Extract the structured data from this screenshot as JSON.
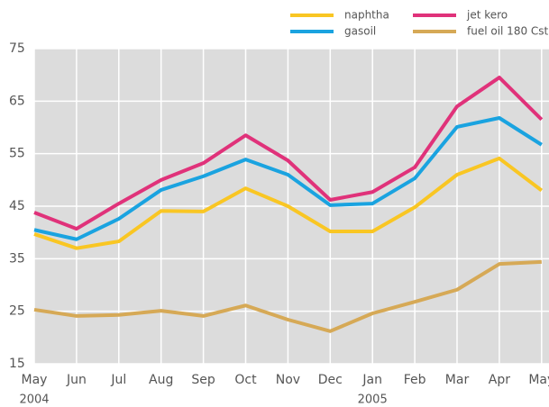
{
  "chart_data": {
    "type": "line",
    "categories": [
      "May",
      "Jun",
      "Jul",
      "Aug",
      "Sep",
      "Oct",
      "Nov",
      "Dec",
      "Jan",
      "Feb",
      "Mar",
      "Apr",
      "May"
    ],
    "years": [
      "2004",
      null,
      null,
      null,
      null,
      null,
      null,
      null,
      "2005",
      null,
      null,
      null,
      null
    ],
    "series": [
      {
        "name": "naphtha",
        "color": "#f9c623",
        "values": [
          39.7,
          37,
          38.3,
          44.1,
          44,
          48.4,
          45,
          40.2,
          40.2,
          44.8,
          51,
          54.1,
          48
        ]
      },
      {
        "name": "gasoil",
        "color": "#1aa3e0",
        "values": [
          40.5,
          38.7,
          42.6,
          48.1,
          50.7,
          53.9,
          51,
          45.2,
          45.5,
          50.3,
          60.1,
          61.8,
          56.7
        ]
      },
      {
        "name": "jet kero",
        "color": "#e0327a",
        "values": [
          43.8,
          40.7,
          45.5,
          50,
          53.2,
          58.5,
          53.7,
          46.2,
          47.7,
          52.4,
          64,
          69.5,
          61.5
        ]
      },
      {
        "name": "fuel oil 180 Cst",
        "color": "#d6a956",
        "values": [
          25.3,
          24.1,
          24.3,
          25.1,
          24.1,
          26.1,
          23.4,
          21.2,
          24.6,
          26.8,
          29.1,
          34,
          34.4
        ]
      }
    ],
    "ylim": [
      15,
      75
    ],
    "yticks": [
      15,
      25,
      35,
      45,
      55,
      65,
      75
    ],
    "grid": true
  }
}
